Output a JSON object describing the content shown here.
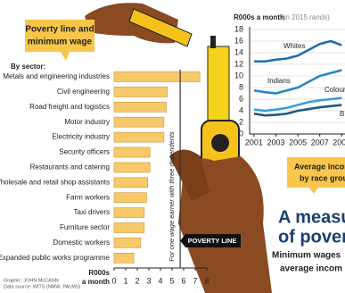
{
  "chart_data": [
    {
      "type": "hbar",
      "title": [
        "Poverty line and",
        "minimum wage"
      ],
      "subtitle": "By sector:",
      "categories": [
        "Metals and engineering industries",
        "Civil engineering",
        "Road freight and logistics",
        "Motor industry",
        "Electricity industry",
        "Security officers",
        "Restaurants and catering",
        "Wholesale and retail shop assistants",
        "Farm workers",
        "Taxi drivers",
        "Furniture sector",
        "Domestic workers",
        "Expanded public works programme"
      ],
      "values": [
        7.4,
        4.6,
        4.5,
        4.3,
        4.3,
        3.1,
        3.1,
        2.9,
        2.8,
        2.6,
        2.6,
        2.3,
        1.7
      ],
      "color": "#f8c96a",
      "xlabel": [
        "R000s",
        "a month"
      ],
      "xlim": [
        0,
        8
      ],
      "xticks": [
        0,
        1,
        2,
        3,
        4,
        5,
        6,
        7,
        8
      ],
      "reference_line": {
        "value": 5.7,
        "label": "For one wage earner with three dependents",
        "tag": "POVERTY LINE"
      },
      "source": [
        "Graphic: JOHN McCANN",
        "Data source: WITS (NMW, PALMS)"
      ]
    },
    {
      "type": "line",
      "ylabel": "R000s a month",
      "ylabel_note": "(in 2015 rands)",
      "caption": [
        "Average incom",
        "by race grou"
      ],
      "x": [
        2001,
        2002,
        2003,
        2004,
        2005,
        2006,
        2007,
        2008,
        2009
      ],
      "series": [
        {
          "name": "Whites",
          "color": "#1f6fb2",
          "values": [
            12.5,
            12.5,
            12.8,
            13,
            13.5,
            14.5,
            15.5,
            16,
            15.3
          ]
        },
        {
          "name": "Indians",
          "color": "#2a86c4",
          "values": [
            7.5,
            7.2,
            7,
            7.5,
            8,
            9,
            10,
            10.5,
            11
          ]
        },
        {
          "name": "Colour",
          "color": "#3a9fd6",
          "values": [
            4.2,
            4,
            4.2,
            4.5,
            5,
            5.5,
            5.8,
            6,
            6.2
          ]
        },
        {
          "name": "B",
          "color": "#1a5a8a",
          "values": [
            3.5,
            3.2,
            3.3,
            3.5,
            4,
            4.3,
            4.6,
            4.8,
            5
          ]
        }
      ],
      "xlim": [
        2000.6,
        2009.3
      ],
      "ylim": [
        0,
        18
      ],
      "xticks": [
        2001,
        2003,
        2005,
        2007,
        2009
      ],
      "yticks": [
        0,
        2,
        4,
        6,
        8,
        10,
        12,
        14,
        16,
        18
      ],
      "grid": true
    }
  ],
  "headline": [
    "A measure",
    "of povert"
  ],
  "standfirst": [
    "Minimum wages",
    "average incom"
  ]
}
